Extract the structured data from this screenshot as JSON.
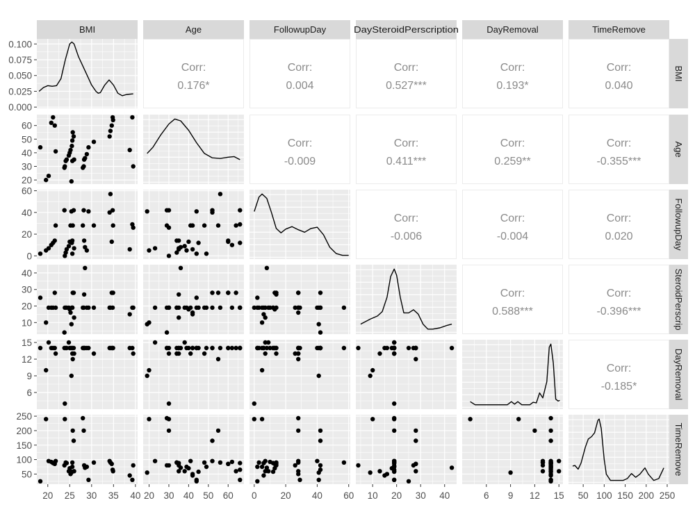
{
  "chart_data": {
    "type": "scatter-matrix",
    "title": "",
    "variables": [
      "BMI",
      "Age",
      "FollowupDay",
      "DaySteroidPerscription",
      "DayRemoval",
      "TimeRemove"
    ],
    "column_strip_labels": [
      "BMI",
      "Age",
      "FollowupDay",
      "DaySteroidPerscription",
      "DayRemoval",
      "TimeRemove"
    ],
    "row_strip_labels": [
      "BMI",
      "Age",
      "FollowupDay",
      "SteroidPerscrip",
      "DayRemoval",
      "TimeRemove"
    ],
    "axis_ranges": {
      "BMI": [
        17.5,
        40.5
      ],
      "Age": [
        17,
        68
      ],
      "FollowupDay": [
        -3,
        61
      ],
      "DaySteroidPerscription": [
        3,
        45
      ],
      "DayRemoval": [
        3,
        15.5
      ],
      "TimeRemove": [
        15,
        255
      ]
    },
    "x_ticks": [
      [
        20,
        25,
        30,
        35,
        40
      ],
      [
        20,
        30,
        40,
        50,
        60
      ],
      [
        0,
        20,
        40,
        60
      ],
      [
        10,
        20,
        30,
        40
      ],
      [
        6,
        9,
        12,
        15
      ],
      [
        50,
        100,
        150,
        200,
        250
      ]
    ],
    "y_ticks": [
      {
        "values": [
          0.0,
          0.025,
          0.05,
          0.075,
          0.1
        ],
        "labels": [
          "0.000",
          "0.025",
          "0.050",
          "0.075",
          "0.100"
        ],
        "range": [
          -0.002,
          0.108
        ]
      },
      {
        "values": [
          20,
          30,
          40,
          50,
          60
        ],
        "labels": [
          "20",
          "30",
          "40",
          "50",
          "60"
        ],
        "range": [
          17,
          68
        ]
      },
      {
        "values": [
          0,
          20,
          40,
          60
        ],
        "labels": [
          "0",
          "20",
          "40",
          "60"
        ],
        "range": [
          -3,
          61
        ]
      },
      {
        "values": [
          10,
          20,
          30,
          40
        ],
        "labels": [
          "10",
          "20",
          "30",
          "40"
        ],
        "range": [
          3,
          45
        ]
      },
      {
        "values": [
          6,
          9,
          12,
          15
        ],
        "labels": [
          "6",
          "9",
          "12",
          "15"
        ],
        "range": [
          3,
          15.5
        ]
      },
      {
        "values": [
          50,
          100,
          150,
          200,
          250
        ],
        "labels": [
          "50",
          "100",
          "150",
          "200",
          "250"
        ],
        "range": [
          15,
          255
        ]
      }
    ],
    "correlations": [
      {
        "row": "BMI",
        "col": "Age",
        "label": "Corr:",
        "value": "0.176*"
      },
      {
        "row": "BMI",
        "col": "FollowupDay",
        "label": "Corr:",
        "value": "0.004"
      },
      {
        "row": "BMI",
        "col": "DaySteroidPerscription",
        "label": "Corr:",
        "value": "0.527***"
      },
      {
        "row": "BMI",
        "col": "DayRemoval",
        "label": "Corr:",
        "value": "0.193*"
      },
      {
        "row": "BMI",
        "col": "TimeRemove",
        "label": "Corr:",
        "value": "0.040"
      },
      {
        "row": "Age",
        "col": "FollowupDay",
        "label": "Corr:",
        "value": "-0.009"
      },
      {
        "row": "Age",
        "col": "DaySteroidPerscription",
        "label": "Corr:",
        "value": "0.411***"
      },
      {
        "row": "Age",
        "col": "DayRemoval",
        "label": "Corr:",
        "value": "0.259**"
      },
      {
        "row": "Age",
        "col": "TimeRemove",
        "label": "Corr:",
        "value": "-0.355***"
      },
      {
        "row": "FollowupDay",
        "col": "DaySteroidPerscription",
        "label": "Corr:",
        "value": "-0.006"
      },
      {
        "row": "FollowupDay",
        "col": "DayRemoval",
        "label": "Corr:",
        "value": "-0.004"
      },
      {
        "row": "FollowupDay",
        "col": "TimeRemove",
        "label": "Corr:",
        "value": "0.020"
      },
      {
        "row": "DaySteroidPerscription",
        "col": "DayRemoval",
        "label": "Corr:",
        "value": "0.588***"
      },
      {
        "row": "DaySteroidPerscription",
        "col": "TimeRemove",
        "label": "Corr:",
        "value": "-0.396***"
      },
      {
        "row": "DayRemoval",
        "col": "TimeRemove",
        "label": "Corr:",
        "value": "-0.185*"
      }
    ],
    "density_curves": {
      "BMI": [
        [
          18,
          0.025
        ],
        [
          19,
          0.031
        ],
        [
          20,
          0.034
        ],
        [
          21,
          0.033
        ],
        [
          22,
          0.034
        ],
        [
          23,
          0.045
        ],
        [
          24,
          0.075
        ],
        [
          25,
          0.1
        ],
        [
          25.5,
          0.103
        ],
        [
          26,
          0.1
        ],
        [
          27,
          0.08
        ],
        [
          28,
          0.065
        ],
        [
          29,
          0.05
        ],
        [
          30,
          0.035
        ],
        [
          31,
          0.025
        ],
        [
          31.5,
          0.022
        ],
        [
          32,
          0.023
        ],
        [
          33,
          0.035
        ],
        [
          34,
          0.043
        ],
        [
          35,
          0.035
        ],
        [
          36,
          0.022
        ],
        [
          37,
          0.018
        ],
        [
          38,
          0.02
        ],
        [
          39.5,
          0.021
        ]
      ],
      "Age": [
        [
          19,
          0.45
        ],
        [
          22,
          0.55
        ],
        [
          26,
          0.75
        ],
        [
          30,
          0.92
        ],
        [
          33,
          1.0
        ],
        [
          36,
          0.97
        ],
        [
          40,
          0.82
        ],
        [
          44,
          0.62
        ],
        [
          48,
          0.45
        ],
        [
          52,
          0.38
        ],
        [
          56,
          0.37
        ],
        [
          60,
          0.39
        ],
        [
          63,
          0.4
        ],
        [
          66,
          0.35
        ]
      ],
      "FollowupDay": [
        [
          0,
          0.72
        ],
        [
          3,
          0.95
        ],
        [
          5,
          1.0
        ],
        [
          8,
          0.93
        ],
        [
          11,
          0.7
        ],
        [
          14,
          0.45
        ],
        [
          17,
          0.38
        ],
        [
          20,
          0.44
        ],
        [
          24,
          0.48
        ],
        [
          28,
          0.43
        ],
        [
          32,
          0.39
        ],
        [
          36,
          0.45
        ],
        [
          40,
          0.47
        ],
        [
          44,
          0.35
        ],
        [
          48,
          0.15
        ],
        [
          52,
          0.05
        ],
        [
          56,
          0.02
        ],
        [
          60,
          0.02
        ]
      ],
      "DaySteroidPerscription": [
        [
          5,
          0.12
        ],
        [
          9,
          0.2
        ],
        [
          12,
          0.25
        ],
        [
          14,
          0.32
        ],
        [
          16,
          0.55
        ],
        [
          17.5,
          0.88
        ],
        [
          19,
          1.0
        ],
        [
          20,
          0.9
        ],
        [
          21.5,
          0.55
        ],
        [
          23,
          0.3
        ],
        [
          25,
          0.3
        ],
        [
          27,
          0.35
        ],
        [
          29,
          0.28
        ],
        [
          31,
          0.12
        ],
        [
          33,
          0.04
        ],
        [
          35,
          0.04
        ],
        [
          38,
          0.06
        ],
        [
          41,
          0.1
        ],
        [
          43,
          0.12
        ]
      ],
      "DayRemoval": [
        [
          4,
          0.08
        ],
        [
          4.6,
          0.03
        ],
        [
          6,
          0.03
        ],
        [
          8,
          0.03
        ],
        [
          8.6,
          0.03
        ],
        [
          9.1,
          0.08
        ],
        [
          9.5,
          0.04
        ],
        [
          9.9,
          0.08
        ],
        [
          10.4,
          0.03
        ],
        [
          11.4,
          0.03
        ],
        [
          11.8,
          0.07
        ],
        [
          12.2,
          0.06
        ],
        [
          12.6,
          0.22
        ],
        [
          13,
          0.14
        ],
        [
          13.5,
          0.4
        ],
        [
          13.8,
          0.95
        ],
        [
          14,
          1.0
        ],
        [
          14.3,
          0.7
        ],
        [
          14.6,
          0.12
        ],
        [
          14.9,
          0.09
        ],
        [
          15.1,
          0.1
        ]
      ],
      "TimeRemove": [
        [
          25,
          0.25
        ],
        [
          30,
          0.26
        ],
        [
          38,
          0.2
        ],
        [
          45,
          0.3
        ],
        [
          55,
          0.55
        ],
        [
          62,
          0.68
        ],
        [
          70,
          0.72
        ],
        [
          77,
          0.78
        ],
        [
          85,
          0.98
        ],
        [
          88,
          1.0
        ],
        [
          93,
          0.85
        ],
        [
          100,
          0.35
        ],
        [
          105,
          0.12
        ],
        [
          115,
          0.02
        ],
        [
          130,
          0.02
        ],
        [
          145,
          0.02
        ],
        [
          155,
          0.05
        ],
        [
          165,
          0.13
        ],
        [
          175,
          0.07
        ],
        [
          185,
          0.12
        ],
        [
          197,
          0.22
        ],
        [
          205,
          0.12
        ],
        [
          218,
          0.02
        ],
        [
          230,
          0.05
        ],
        [
          242,
          0.22
        ]
      ]
    },
    "observations": {
      "BMI": [
        18.3,
        19.6,
        20.2,
        20.8,
        21.2,
        21.6,
        21.8,
        23.8,
        23.9,
        24.1,
        24.3,
        24.8,
        25.0,
        25.2,
        25.4,
        25.6,
        25.7,
        25.9,
        26.0,
        25.5,
        25.6,
        28.0,
        28.2,
        28.3,
        28.5,
        28.9,
        29.3,
        30.5,
        34.1,
        34.3,
        34.6,
        34.9,
        34.8,
        38.7,
        39.5,
        39.3
      ],
      "Age": [
        44,
        20,
        23,
        62,
        66,
        60,
        41,
        29,
        30,
        34,
        35,
        38,
        40,
        42,
        19,
        34,
        55,
        52,
        35,
        45,
        49,
        29,
        30,
        35,
        36,
        39,
        44,
        48,
        52,
        56,
        60,
        64,
        66,
        42,
        30,
        66
      ],
      "FollowupDay": [
        2,
        5,
        7,
        10,
        12,
        14,
        28,
        42,
        0,
        3,
        6,
        9,
        13,
        28,
        41,
        14,
        28,
        42,
        7,
        12,
        2,
        28,
        42,
        14,
        8,
        5,
        41,
        28,
        40,
        57,
        13,
        28,
        42,
        6,
        26,
        29
      ],
      "DaySteroidPerscription": [
        25,
        10,
        19,
        19,
        19,
        28,
        19,
        4,
        19,
        19,
        19,
        19,
        18,
        16,
        9,
        19,
        28,
        28,
        13,
        19,
        19,
        19,
        19,
        27,
        43,
        19,
        19,
        19,
        19,
        19,
        28,
        28,
        19,
        15,
        19,
        19
      ],
      "DayRemoval": [
        14,
        10,
        15,
        14,
        14,
        14,
        13,
        14,
        4,
        14,
        14,
        15,
        14,
        14,
        9,
        13,
        12,
        14,
        13,
        14,
        14,
        14,
        14,
        14,
        14,
        14,
        14,
        13,
        14,
        14,
        14,
        14,
        14,
        14,
        13,
        14
      ],
      "TimeRemove": [
        25,
        240,
        95,
        92,
        88,
        85,
        95,
        80,
        240,
        90,
        88,
        60,
        70,
        50,
        55,
        90,
        200,
        165,
        60,
        58,
        75,
        243,
        200,
        80,
        72,
        75,
        30,
        90,
        95,
        90,
        85,
        60,
        65,
        45,
        80,
        30
      ]
    }
  },
  "figure": {
    "background": "#ffffff",
    "panel_background": "#ebebeb",
    "grid_color": "#ffffff",
    "strip_background": "#d9d9d9",
    "point_color": "#000000",
    "line_color": "#000000",
    "corr_text_color": "#8a8a8a",
    "corr_border_color": "#ebebeb"
  }
}
